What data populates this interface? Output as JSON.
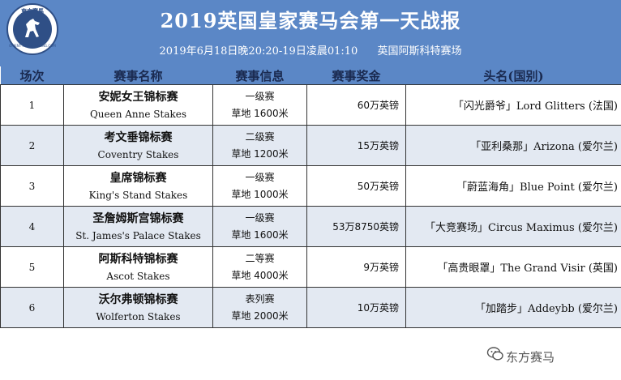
{
  "logo": {
    "top_text": "東方賽馬",
    "bottom_text": "ORIENT HORSE RACING.COM"
  },
  "header": {
    "title": "2019英国皇家赛马会第一天战报",
    "datetime": "2019年6月18日晚20:20-19日凌晨01:10",
    "venue": "英国阿斯科特赛场"
  },
  "columns": [
    "场次",
    "赛事名称",
    "赛事信息",
    "赛事奖金",
    "头名(国别)"
  ],
  "rows": [
    {
      "no": "1",
      "name_zh": "安妮女王锦标赛",
      "name_en": "Queen Anne Stakes",
      "grade": "一级赛",
      "surface": "草地 1600米",
      "prize": "60万英镑",
      "winner": "「闪光爵爷」Lord Glitters (法国)"
    },
    {
      "no": "2",
      "name_zh": "考文垂锦标赛",
      "name_en": "Coventry Stakes",
      "grade": "二级赛",
      "surface": "草地 1200米",
      "prize": "15万英镑",
      "winner": "「亚利桑那」Arizona (爱尔兰)"
    },
    {
      "no": "3",
      "name_zh": "皇席锦标赛",
      "name_en": "King's Stand Stakes",
      "grade": "一级赛",
      "surface": "草地 1000米",
      "prize": "50万英镑",
      "winner": "「蔚蓝海角」Blue Point (爱尔兰)"
    },
    {
      "no": "4",
      "name_zh": "圣詹姆斯宫锦标赛",
      "name_en": "St. James's Palace Stakes",
      "grade": "一级赛",
      "surface": "草地 1600米",
      "prize": "53万8750英镑",
      "winner": "「大竞赛场」Circus Maximus (爱尔兰)"
    },
    {
      "no": "5",
      "name_zh": "阿斯科特锦标赛",
      "name_en": "Ascot Stakes",
      "grade": "二等赛",
      "surface": "草地 4000米",
      "prize": "9万英镑",
      "winner": "「高贵眼罩」The Grand Visir (英国)"
    },
    {
      "no": "6",
      "name_zh": "沃尔弗顿锦标赛",
      "name_en": "Wolferton Stakes",
      "grade": "表列赛",
      "surface": "草地 2000米",
      "prize": "10万英镑",
      "winner": "「加踏步」Addeybb (爱尔兰)"
    }
  ],
  "watermark": "东方赛马"
}
